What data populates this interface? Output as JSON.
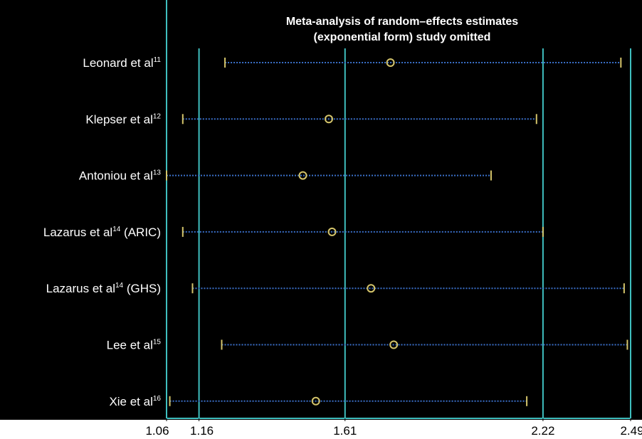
{
  "chart_data": {
    "type": "forest",
    "title_lines": [
      "Meta-analysis of random–effects estimates",
      "(exponential form) study omitted"
    ],
    "x_ticks": [
      1.06,
      1.16,
      1.61,
      2.22,
      2.49
    ],
    "x_tick_labels": [
      "1.06",
      "1.16",
      "1.61",
      "2.22",
      "2.49"
    ],
    "reference_lines": [
      1.16,
      1.61,
      2.22
    ],
    "xlim": [
      1.06,
      2.49
    ],
    "studies": [
      {
        "name": "Leonard et al",
        "sup": "11",
        "suffix": "",
        "estimate": 1.75,
        "lower": 1.24,
        "upper": 2.46
      },
      {
        "name": "Klepser et al",
        "sup": "12",
        "suffix": "",
        "estimate": 1.56,
        "lower": 1.11,
        "upper": 2.2
      },
      {
        "name": "Antoniou et al",
        "sup": "13",
        "suffix": "",
        "estimate": 1.48,
        "lower": 1.06,
        "upper": 2.06
      },
      {
        "name": "Lazarus et al",
        "sup": "14",
        "suffix": " (ARIC)",
        "estimate": 1.57,
        "lower": 1.11,
        "upper": 2.22
      },
      {
        "name": "Lazarus et al",
        "sup": "14",
        "suffix": " (GHS)",
        "estimate": 1.69,
        "lower": 1.14,
        "upper": 2.47
      },
      {
        "name": "Lee et al",
        "sup": "15",
        "suffix": "",
        "estimate": 1.76,
        "lower": 1.23,
        "upper": 2.48
      },
      {
        "name": "Xie et al",
        "sup": "16",
        "suffix": "",
        "estimate": 1.52,
        "lower": 1.07,
        "upper": 2.17
      }
    ],
    "colors": {
      "background": "#000000",
      "reference_line": "#3fbfbf",
      "ci_line": "#3a6fc8",
      "ci_cap": "#d4c46a",
      "point": "#d4c46a",
      "text": "#ffffff",
      "tick_text": "#000000"
    }
  }
}
